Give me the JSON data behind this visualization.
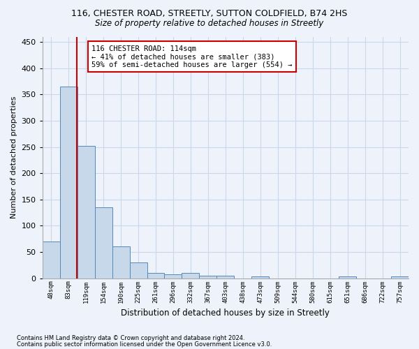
{
  "title1": "116, CHESTER ROAD, STREETLY, SUTTON COLDFIELD, B74 2HS",
  "title2": "Size of property relative to detached houses in Streetly",
  "xlabel": "Distribution of detached houses by size in Streetly",
  "ylabel": "Number of detached properties",
  "footnote1": "Contains HM Land Registry data © Crown copyright and database right 2024.",
  "footnote2": "Contains public sector information licensed under the Open Government Licence v3.0.",
  "bar_labels": [
    "48sqm",
    "83sqm",
    "119sqm",
    "154sqm",
    "190sqm",
    "225sqm",
    "261sqm",
    "296sqm",
    "332sqm",
    "367sqm",
    "403sqm",
    "438sqm",
    "473sqm",
    "509sqm",
    "544sqm",
    "580sqm",
    "615sqm",
    "651sqm",
    "686sqm",
    "722sqm",
    "757sqm"
  ],
  "bar_values": [
    70,
    365,
    252,
    135,
    60,
    30,
    10,
    8,
    10,
    5,
    5,
    0,
    4,
    0,
    0,
    0,
    0,
    4,
    0,
    0,
    4
  ],
  "bar_color": "#c8d8eb",
  "bar_edge_color": "#5588bb",
  "grid_color": "#c8d8eb",
  "background_color": "#eef2fa",
  "vline_color": "#cc0000",
  "vline_x": 1.48,
  "annotation_line1": "116 CHESTER ROAD: 114sqm",
  "annotation_line2": "← 41% of detached houses are smaller (383)",
  "annotation_line3": "59% of semi-detached houses are larger (554) →",
  "annotation_box_color": "#ffffff",
  "annotation_box_edge": "#cc0000",
  "ylim": [
    0,
    460
  ],
  "yticks": [
    0,
    50,
    100,
    150,
    200,
    250,
    300,
    350,
    400,
    450
  ]
}
